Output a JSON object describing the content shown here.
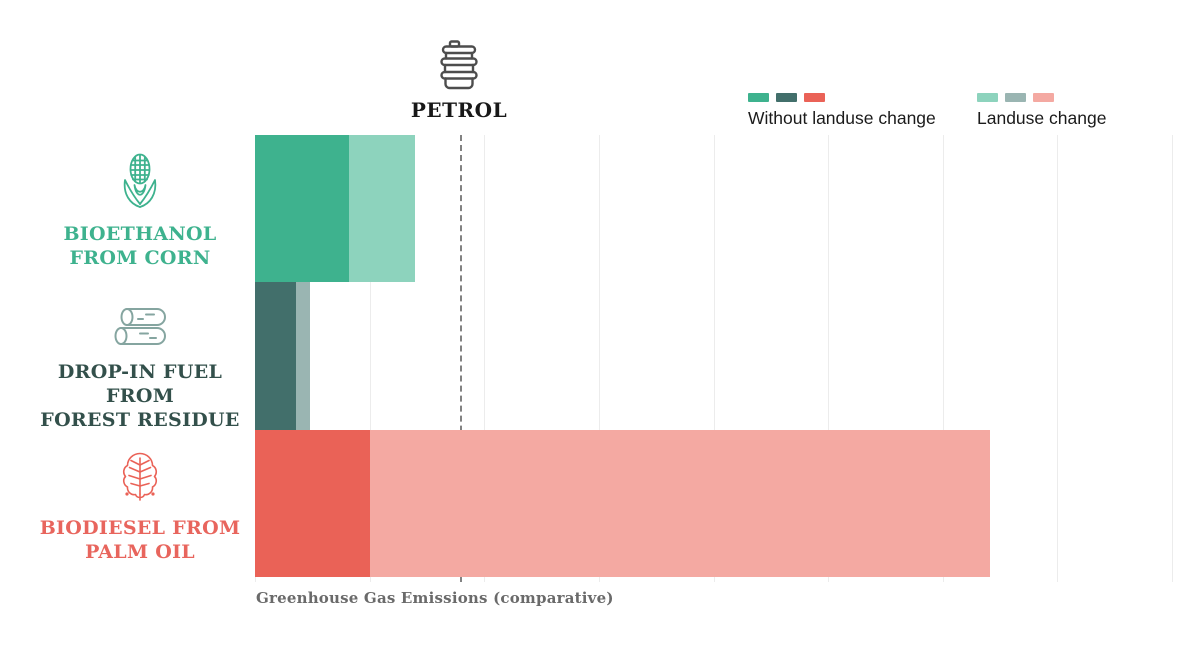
{
  "header": {
    "petrol_label": "PETROL",
    "petrol_icon": "oil-barrel-icon"
  },
  "legend": {
    "groups": [
      {
        "label": "Without landuse change",
        "colors": [
          "#3eb28e",
          "#426f6b",
          "#ea6257"
        ]
      },
      {
        "label": "Landuse change",
        "colors": [
          "#8dd3bd",
          "#9ab5b2",
          "#f4a9a2"
        ]
      }
    ]
  },
  "rows": [
    {
      "icon": "corn-icon",
      "label_lines": [
        "BIOETHANOL",
        "FROM CORN"
      ],
      "color": "#3eb28e"
    },
    {
      "icon": "logs-icon",
      "label_lines": [
        "DROP-IN FUEL FROM",
        "FOREST RESIDUE"
      ],
      "color": "#33504b"
    },
    {
      "icon": "palm-leaf-icon",
      "label_lines": [
        "BIODIESEL FROM",
        "PALM OIL"
      ],
      "color": "#e8655d"
    }
  ],
  "axis": {
    "label": "Greenhouse Gas Emissions (comparative)"
  },
  "chart_data": {
    "type": "bar",
    "orientation": "horizontal",
    "title": "",
    "xlabel": "Greenhouse Gas Emissions (comparative)",
    "ylabel": "",
    "unit": "relative emissions, petrol = 100 (estimated from bar lengths; axis has no tick labels)",
    "categories": [
      "Bioethanol from corn",
      "Drop-in fuel from forest residue",
      "Biodiesel from palm oil"
    ],
    "series": [
      {
        "name": "Without landuse change",
        "values": [
          46,
          20,
          56
        ],
        "colors": [
          "#3eb28e",
          "#426f6b",
          "#ea6257"
        ]
      },
      {
        "name": "Landuse change (additional)",
        "values": [
          32,
          7,
          303
        ],
        "colors": [
          "#8dd3bd",
          "#9ab5b2",
          "#f4a9a2"
        ]
      }
    ],
    "petrol_reference": 100,
    "petrol_reference_style": "vertical dashed line",
    "xlim": [
      0,
      448
    ],
    "gridline_interval": 56,
    "gridlines": "vertical, light gray, no tick labels",
    "legend_position": "top-right"
  }
}
